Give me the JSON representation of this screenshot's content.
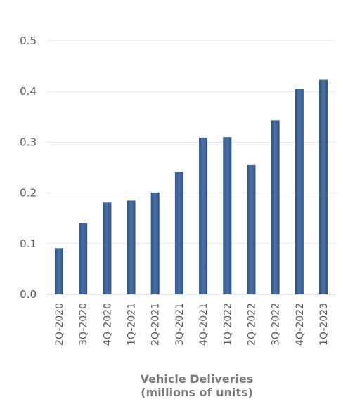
{
  "chart_data": {
    "type": "bar",
    "categories": [
      "2Q-2020",
      "3Q-2020",
      "4Q-2020",
      "1Q-2021",
      "2Q-2021",
      "3Q-2021",
      "4Q-2021",
      "1Q-2022",
      "2Q-2022",
      "3Q-2022",
      "4Q-2022",
      "1Q-2023"
    ],
    "values": [
      0.091,
      0.14,
      0.181,
      0.185,
      0.201,
      0.241,
      0.309,
      0.31,
      0.255,
      0.343,
      0.405,
      0.423
    ],
    "yticks": [
      "0.0",
      "0.1",
      "0.2",
      "0.3",
      "0.4",
      "0.5"
    ],
    "ylim": [
      0,
      0.5
    ],
    "xlabel_line1": "Vehicle Deliveries",
    "xlabel_line2": "(millions of units)",
    "grid": true,
    "colors": {
      "bar": "#3a5f8f",
      "bar_light": "#4b74a8",
      "grid": "#e3e3e3"
    }
  }
}
